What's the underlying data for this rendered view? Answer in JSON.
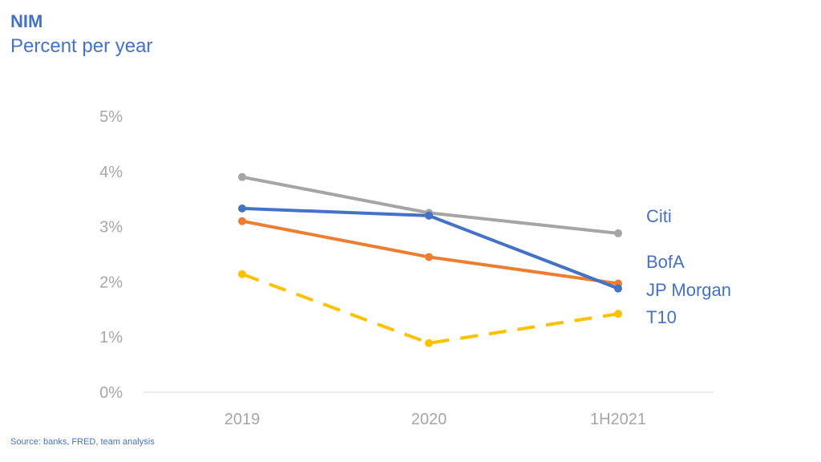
{
  "header": {
    "title": "NIM",
    "subtitle": "Percent per year"
  },
  "footer": {
    "source": "Source: banks, FRED, team analysis"
  },
  "chart_data": {
    "type": "line",
    "title": "NIM",
    "subtitle": "Percent per year",
    "categories": [
      "2019",
      "2020",
      "1H2021"
    ],
    "ylim": [
      0,
      5
    ],
    "yticks": [
      "0%",
      "1%",
      "2%",
      "3%",
      "4%",
      "5%"
    ],
    "grid": false,
    "legend": "right (direct labels)",
    "series": [
      {
        "name": "Citi",
        "values": [
          3.9,
          3.25,
          2.88
        ],
        "color": "#a5a5a5",
        "dashed": false
      },
      {
        "name": "BofA",
        "values": [
          3.33,
          3.2,
          1.88
        ],
        "color": "#4472c4",
        "dashed": false
      },
      {
        "name": "JP Morgan",
        "values": [
          3.1,
          2.45,
          1.97
        ],
        "color": "#ed7d31",
        "dashed": false
      },
      {
        "name": "T10",
        "values": [
          2.14,
          0.89,
          1.42
        ],
        "color": "#ffc000",
        "dashed": true
      }
    ]
  }
}
